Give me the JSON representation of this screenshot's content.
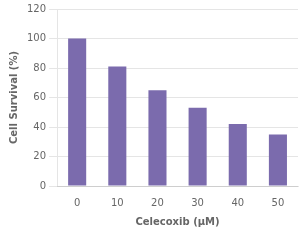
{
  "chart_data": {
    "type": "bar",
    "categories": [
      "0",
      "10",
      "20",
      "30",
      "40",
      "50"
    ],
    "values": [
      100,
      81,
      65,
      53,
      42,
      35
    ],
    "color": "#7b6bad",
    "xlabel": "Celecoxib (μM)",
    "ylabel": "Cell Survival (%)",
    "ylim": [
      0,
      120
    ],
    "yticks": [
      0,
      20,
      40,
      60,
      80,
      100,
      120
    ],
    "grid": true
  }
}
